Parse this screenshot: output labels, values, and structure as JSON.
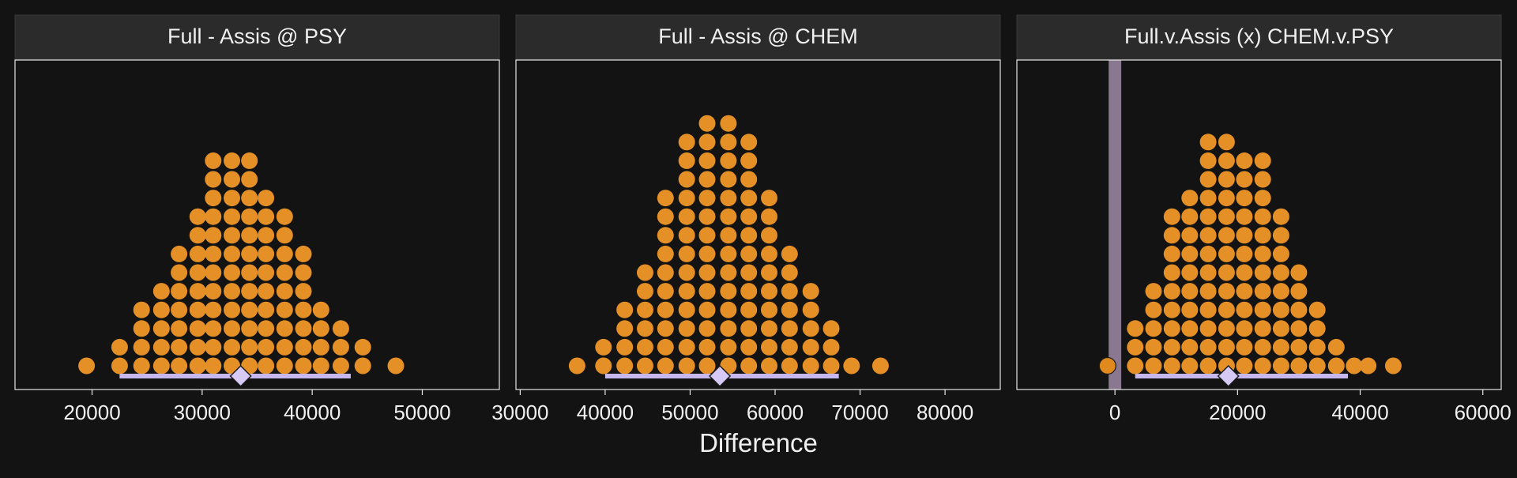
{
  "chart_data": [
    {
      "type": "dotplot",
      "title": "Full - Assis @ PSY",
      "xlim": [
        13000,
        57000
      ],
      "xticks": [
        20000,
        30000,
        40000,
        50000
      ],
      "tick_labels": [
        "20000",
        "30000",
        "40000",
        "50000"
      ],
      "dot_bins": [
        {
          "x": 19500,
          "count": 1
        },
        {
          "x": 22500,
          "count": 2
        },
        {
          "x": 24500,
          "count": 4
        },
        {
          "x": 26300,
          "count": 5
        },
        {
          "x": 27900,
          "count": 7
        },
        {
          "x": 29600,
          "count": 9
        },
        {
          "x": 31000,
          "count": 12
        },
        {
          "x": 32700,
          "count": 12
        },
        {
          "x": 34300,
          "count": 12
        },
        {
          "x": 35800,
          "count": 10
        },
        {
          "x": 37500,
          "count": 9
        },
        {
          "x": 39200,
          "count": 7
        },
        {
          "x": 40800,
          "count": 4
        },
        {
          "x": 42600,
          "count": 3
        },
        {
          "x": 44600,
          "count": 2
        },
        {
          "x": 47600,
          "count": 1
        }
      ],
      "interval": [
        22500,
        43500
      ],
      "point_estimate": 33500,
      "reference_line": null
    },
    {
      "type": "dotplot",
      "title": "Full - Assis @ CHEM",
      "xlim": [
        29500,
        86500
      ],
      "xticks": [
        30000,
        40000,
        50000,
        60000,
        70000,
        80000
      ],
      "tick_labels": [
        "30000",
        "40000",
        "50000",
        "60000",
        "70000",
        "80000"
      ],
      "dot_bins": [
        {
          "x": 36700,
          "count": 1
        },
        {
          "x": 39800,
          "count": 2
        },
        {
          "x": 42300,
          "count": 4
        },
        {
          "x": 44700,
          "count": 6
        },
        {
          "x": 47100,
          "count": 10
        },
        {
          "x": 49600,
          "count": 13
        },
        {
          "x": 52000,
          "count": 14
        },
        {
          "x": 54500,
          "count": 14
        },
        {
          "x": 56900,
          "count": 13
        },
        {
          "x": 59300,
          "count": 10
        },
        {
          "x": 61700,
          "count": 7
        },
        {
          "x": 64200,
          "count": 5
        },
        {
          "x": 66600,
          "count": 3
        },
        {
          "x": 69000,
          "count": 1
        },
        {
          "x": 72400,
          "count": 1
        }
      ],
      "interval": [
        40000,
        67500
      ],
      "point_estimate": 53500,
      "reference_line": null
    },
    {
      "type": "dotplot",
      "title": "Full.v.Assis (x) CHEM.v.PSY",
      "xlim": [
        -16000,
        63000
      ],
      "xticks": [
        0,
        20000,
        40000,
        60000
      ],
      "tick_labels": [
        "0",
        "20000",
        "40000",
        "60000"
      ],
      "dot_bins": [
        {
          "x": -1200,
          "count": 1,
          "highlight": true
        },
        {
          "x": 3300,
          "count": 3
        },
        {
          "x": 6300,
          "count": 5
        },
        {
          "x": 9300,
          "count": 9
        },
        {
          "x": 12200,
          "count": 10
        },
        {
          "x": 15200,
          "count": 13
        },
        {
          "x": 18200,
          "count": 13
        },
        {
          "x": 21100,
          "count": 12
        },
        {
          "x": 24100,
          "count": 12
        },
        {
          "x": 27100,
          "count": 9
        },
        {
          "x": 30000,
          "count": 6
        },
        {
          "x": 33000,
          "count": 4
        },
        {
          "x": 36100,
          "count": 2
        },
        {
          "x": 39000,
          "count": 1
        },
        {
          "x": 41300,
          "count": 1
        },
        {
          "x": 45400,
          "count": 1
        }
      ],
      "interval": [
        3300,
        38000
      ],
      "point_estimate": 18500,
      "reference_line": 0
    }
  ],
  "xlabel": "Difference",
  "colors": {
    "background": "#131313",
    "panel_border": "#e6e6e6",
    "strip_fill": "#2b2b2b",
    "strip_text": "#f0f0f0",
    "dot_fill": "#e59027",
    "dot_highlight_fill": "#e08a1e",
    "interval": "#c7b7ef",
    "diamond": "#d7c9f5",
    "rope": "#8a7891",
    "tick_text": "#f0f0f0"
  }
}
